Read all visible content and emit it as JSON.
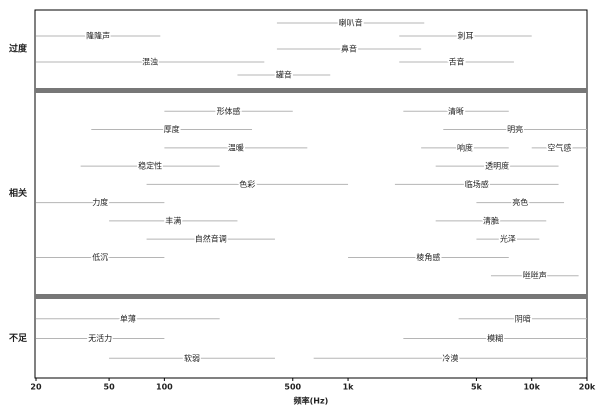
{
  "chart_data": {
    "type": "range",
    "xlabel": "频率(Hz)",
    "xscale": "log",
    "xlim": [
      20,
      20000
    ],
    "xticks": [
      20,
      50,
      100,
      500,
      {
        "value": 1000,
        "label": "1k"
      },
      {
        "value": 5000,
        "label": "5k"
      },
      {
        "value": 10000,
        "label": "10k"
      },
      {
        "value": 20000,
        "label": "20k"
      }
    ],
    "line_color": "#b5b5b5",
    "separator_color": "#777777",
    "sections": [
      {
        "name": "过度",
        "rows": [
          [
            {
              "label": "喇叭音",
              "range": [
                410,
                2600
              ]
            }
          ],
          [
            {
              "label": "隆隆声",
              "range": [
                20,
                95
              ]
            },
            {
              "label": "刺耳",
              "range": [
                1900,
                10000
              ]
            }
          ],
          [
            {
              "label": "鼻音",
              "range": [
                410,
                2500
              ]
            }
          ],
          [
            {
              "label": "混浊",
              "range": [
                20,
                350
              ]
            },
            {
              "label": "舌音",
              "range": [
                1900,
                8000
              ]
            }
          ],
          [
            {
              "label": "罐音",
              "range": [
                250,
                800
              ]
            }
          ]
        ]
      },
      {
        "name": "相关",
        "rows": [
          [
            {
              "label": "形体感",
              "range": [
                100,
                500
              ]
            },
            {
              "label": "清晰",
              "range": [
                2000,
                7500
              ]
            }
          ],
          [
            {
              "label": "厚度",
              "range": [
                40,
                300
              ]
            },
            {
              "label": "明亮",
              "range": [
                3300,
                20000
              ]
            }
          ],
          [
            {
              "label": "温暖",
              "range": [
                100,
                600
              ]
            },
            {
              "label": "响度",
              "range": [
                2500,
                7500
              ]
            },
            {
              "label": "空气感",
              "range": [
                10000,
                20000
              ]
            }
          ],
          [
            {
              "label": "稳定性",
              "range": [
                35,
                200
              ]
            },
            {
              "label": "透明度",
              "range": [
                3000,
                14000
              ]
            }
          ],
          [
            {
              "label": "色彩",
              "range": [
                80,
                1000
              ]
            },
            {
              "label": "临场感",
              "range": [
                1800,
                14000
              ]
            }
          ],
          [
            {
              "label": "力度",
              "range": [
                20,
                100
              ]
            },
            {
              "label": "亮色",
              "range": [
                5000,
                15000
              ]
            }
          ],
          [
            {
              "label": "丰满",
              "range": [
                50,
                250
              ]
            },
            {
              "label": "清脆",
              "range": [
                3000,
                12000
              ]
            }
          ],
          [
            {
              "label": "自然音调",
              "range": [
                80,
                400
              ]
            },
            {
              "label": "光泽",
              "range": [
                5000,
                11000
              ]
            }
          ],
          [
            {
              "label": "低沉",
              "range": [
                20,
                100
              ]
            },
            {
              "label": "棱角感",
              "range": [
                1000,
                7500
              ]
            }
          ],
          [
            {
              "label": "咝咝声",
              "range": [
                6000,
                18000
              ]
            }
          ]
        ]
      },
      {
        "name": "不足",
        "rows": [
          [
            {
              "label": "单薄",
              "range": [
                20,
                200
              ]
            },
            {
              "label": "阴暗",
              "range": [
                4000,
                20000
              ]
            }
          ],
          [
            {
              "label": "无活力",
              "range": [
                20,
                100
              ]
            },
            {
              "label": "模糊",
              "range": [
                2000,
                20000
              ]
            }
          ],
          [
            {
              "label": "软弱",
              "range": [
                50,
                400
              ]
            },
            {
              "label": "冷漠",
              "range": [
                650,
                20000
              ]
            }
          ]
        ]
      }
    ]
  }
}
